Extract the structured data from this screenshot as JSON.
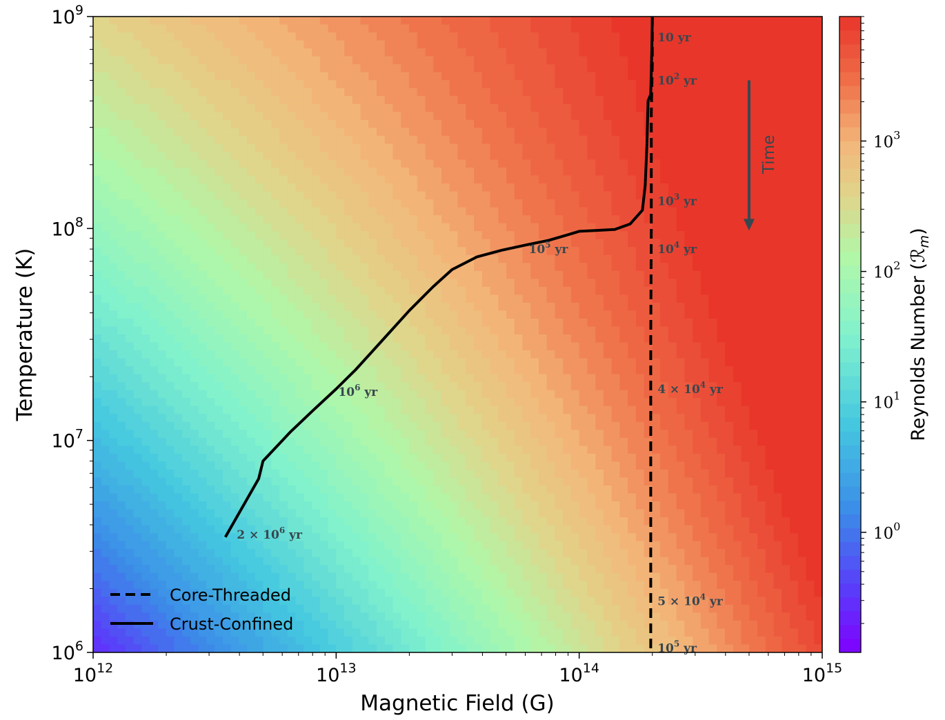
{
  "chart_data": {
    "type": "heatmap",
    "title": "",
    "xlabel": "Magnetic Field (G)",
    "ylabel": "Temperature (K)",
    "xscale": "log",
    "yscale": "log",
    "xlim": [
      1000000000000.0,
      1000000000000000.0
    ],
    "ylim": [
      1000000.0,
      1000000000.0
    ],
    "x_ticks": [
      {
        "base": "10",
        "exp": "12",
        "value": 1000000000000.0
      },
      {
        "base": "10",
        "exp": "13",
        "value": 10000000000000.0
      },
      {
        "base": "10",
        "exp": "14",
        "value": 100000000000000.0
      },
      {
        "base": "10",
        "exp": "15",
        "value": 1000000000000000.0
      }
    ],
    "y_ticks": [
      {
        "base": "10",
        "exp": "6",
        "value": 1000000.0
      },
      {
        "base": "10",
        "exp": "7",
        "value": 10000000.0
      },
      {
        "base": "10",
        "exp": "8",
        "value": 100000000.0
      },
      {
        "base": "10",
        "exp": "9",
        "value": 1000000000.0
      }
    ],
    "colorbar": {
      "label": "Reynolds Number (ℛ",
      "label_sub": "m",
      "label_close": ")",
      "scale": "log",
      "range": [
        0.12,
        9000
      ],
      "colormap": "rainbow",
      "ticks": [
        {
          "base": "10",
          "exp": "0",
          "value": 1
        },
        {
          "base": "10",
          "exp": "1",
          "value": 10
        },
        {
          "base": "10",
          "exp": "2",
          "value": 100
        },
        {
          "base": "10",
          "exp": "3",
          "value": 1000
        }
      ]
    },
    "background_field": "Rm increases with magnetic field B and temperature T",
    "series": [
      {
        "name": "Core-Threaded",
        "style": "dashed",
        "color": "#000000",
        "points": [
          [
            200000000000000.0,
            1000000000.0
          ],
          [
            200000000000000.0,
            600000000.0
          ],
          [
            198000000000000.0,
            350000000.0
          ],
          [
            198000000000000.0,
            100000000.0
          ],
          [
            197000000000000.0,
            30000000.0
          ],
          [
            197000000000000.0,
            1000000.0
          ]
        ]
      },
      {
        "name": "Crust-Confined",
        "style": "solid",
        "color": "#000000",
        "points": [
          [
            200000000000000.0,
            1000000000.0
          ],
          [
            199000000000000.0,
            700000000.0
          ],
          [
            198000000000000.0,
            550000000.0
          ],
          [
            197000000000000.0,
            430000000.0
          ],
          [
            192000000000000.0,
            400000000.0
          ],
          [
            190000000000000.0,
            250000000.0
          ],
          [
            187000000000000.0,
            160000000.0
          ],
          [
            182000000000000.0,
            122000000.0
          ],
          [
            162000000000000.0,
            105000000.0
          ],
          [
            140000000000000.0,
            99000000.0
          ],
          [
            120000000000000.0,
            98000000.0
          ],
          [
            100000000000000.0,
            97000000.0
          ],
          [
            90000000000000.0,
            93500000.0
          ],
          [
            75000000000000.0,
            88000000.0
          ],
          [
            60000000000000.0,
            83500000.0
          ],
          [
            48000000000000.0,
            79000000.0
          ],
          [
            38000000000000.0,
            73500000.0
          ],
          [
            30000000000000.0,
            64000000.0
          ],
          [
            25000000000000.0,
            53000000.0
          ],
          [
            20000000000000.0,
            41000000.0
          ],
          [
            15000000000000.0,
            28500000.0
          ],
          [
            12000000000000.0,
            21500000.0
          ],
          [
            10000000000000.0,
            17500000.0
          ],
          [
            8000000000000.0,
            13800000.0
          ],
          [
            6500000000000.0,
            11000000.0
          ],
          [
            5000000000000.0,
            8000000.0
          ],
          [
            4800000000000.0,
            6600000.0
          ],
          [
            3500000000000.0,
            3500000.0
          ]
        ]
      }
    ],
    "age_labels": [
      {
        "mant": "",
        "exp": "",
        "text": "10 yr",
        "x": 210000000000000.0,
        "y": 800000000.0
      },
      {
        "mant": "",
        "exp": "2",
        "text": "10",
        "unit": "yr",
        "x": 210000000000000.0,
        "y": 500000000.0
      },
      {
        "mant": "",
        "exp": "3",
        "text": "10",
        "unit": "yr",
        "x": 210000000000000.0,
        "y": 135000000.0
      },
      {
        "mant": "",
        "exp": "4",
        "text": "10",
        "unit": "yr",
        "x": 210000000000000.0,
        "y": 80000000.0
      },
      {
        "mant": "",
        "exp": "5",
        "text": "10",
        "unit": "yr",
        "x": 62000000000000.0,
        "y": 80000000.0
      },
      {
        "mant": "",
        "exp": "6",
        "text": "10",
        "unit": "yr",
        "x": 10200000000000.0,
        "y": 17000000.0
      },
      {
        "mant": "4 × ",
        "exp": "4",
        "text": "10",
        "unit": "yr",
        "x": 210000000000000.0,
        "y": 17500000.0
      },
      {
        "mant": "2 × ",
        "exp": "6",
        "text": "10",
        "unit": "yr",
        "x": 3900000000000.0,
        "y": 3600000.0
      },
      {
        "mant": "5 × ",
        "exp": "4",
        "text": "10",
        "unit": "yr",
        "x": 210000000000000.0,
        "y": 1750000.0
      },
      {
        "mant": "",
        "exp": "5",
        "text": "10",
        "unit": "yr",
        "x": 210000000000000.0,
        "y": 1050000.0
      }
    ],
    "time_arrow": {
      "label": "Time",
      "x": 500000000000000.0,
      "y_start": 500000000.0,
      "y_end": 100000000.0
    },
    "legend": {
      "placement": "lower-left",
      "entries": [
        {
          "label": "Core-Threaded",
          "style": "dashed"
        },
        {
          "label": "Crust-Confined",
          "style": "solid"
        }
      ]
    },
    "grid": false
  }
}
